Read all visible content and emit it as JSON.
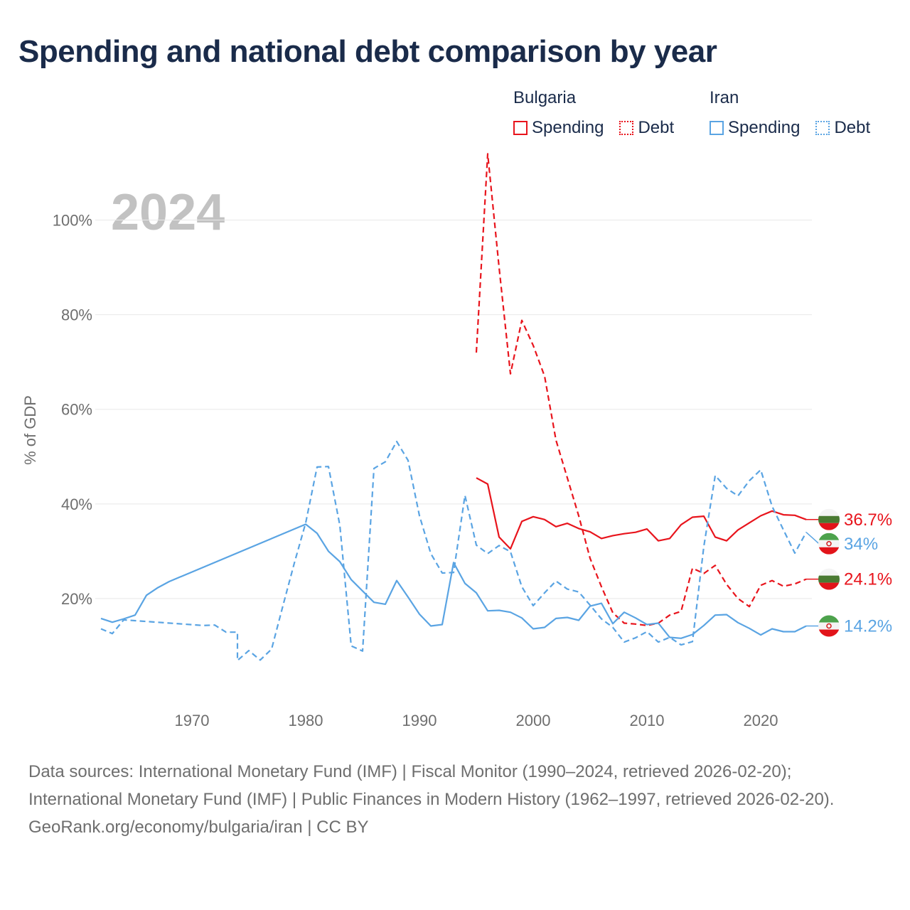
{
  "title": "Spending and national debt comparison by year",
  "legend": {
    "groups": [
      {
        "country": "Bulgaria",
        "color": "#e8141c",
        "items": [
          {
            "label": "Spending",
            "style": "solid"
          },
          {
            "label": "Debt",
            "style": "dotted"
          }
        ]
      },
      {
        "country": "Iran",
        "color": "#5aa4e3",
        "items": [
          {
            "label": "Spending",
            "style": "solid"
          },
          {
            "label": "Debt",
            "style": "dotted"
          }
        ]
      }
    ]
  },
  "footer": {
    "sources": "Data sources: International Monetary Fund (IMF) | Fiscal Monitor (1990–2024, retrieved 2026-02-20); International Monetary Fund (IMF) | Public Finances in Modern History (1962–1997, retrieved 2026-02-20).",
    "credit": "GeoRank.org/economy/bulgaria/iran | CC BY"
  },
  "chart_data": {
    "type": "line",
    "year_label": "2024",
    "ylabel": "% of GDP",
    "xlim": [
      1961.5,
      2024.5
    ],
    "ylim": [
      0,
      110
    ],
    "x_ticks": [
      1970,
      1980,
      1990,
      2000,
      2010,
      2020
    ],
    "y_ticks": [
      20,
      40,
      60,
      80,
      100
    ],
    "y_tick_labels": [
      "20%",
      "40%",
      "60%",
      "80%",
      "100%"
    ],
    "grid": true,
    "series": [
      {
        "name": "Bulgaria Spending",
        "country": "Bulgaria",
        "metric": "Spending",
        "color": "#e8141c",
        "dash": "solid",
        "end_label": "36.7%",
        "points": [
          [
            1995,
            45.5
          ],
          [
            1996,
            44.2
          ],
          [
            1997,
            33.0
          ],
          [
            1998,
            30.5
          ],
          [
            1999,
            36.3
          ],
          [
            2000,
            37.3
          ],
          [
            2001,
            36.7
          ],
          [
            2002,
            35.2
          ],
          [
            2003,
            35.9
          ],
          [
            2004,
            34.8
          ],
          [
            2005,
            34.1
          ],
          [
            2006,
            32.7
          ],
          [
            2007,
            33.3
          ],
          [
            2008,
            33.7
          ],
          [
            2009,
            34.0
          ],
          [
            2010,
            34.7
          ],
          [
            2011,
            32.2
          ],
          [
            2012,
            32.7
          ],
          [
            2013,
            35.6
          ],
          [
            2014,
            37.2
          ],
          [
            2015,
            37.4
          ],
          [
            2016,
            33.0
          ],
          [
            2017,
            32.2
          ],
          [
            2018,
            34.5
          ],
          [
            2019,
            36.0
          ],
          [
            2020,
            37.5
          ],
          [
            2021,
            38.5
          ],
          [
            2022,
            37.7
          ],
          [
            2023,
            37.6
          ],
          [
            2024,
            36.7
          ]
        ]
      },
      {
        "name": "Bulgaria Debt",
        "country": "Bulgaria",
        "metric": "Debt",
        "color": "#e8141c",
        "dash": "dashed",
        "end_label": "24.1%",
        "points": [
          [
            1995,
            72.0
          ],
          [
            1996,
            114.0
          ],
          [
            1997,
            90.0
          ],
          [
            1998,
            67.5
          ],
          [
            1999,
            78.8
          ],
          [
            2000,
            73.5
          ],
          [
            2001,
            67.0
          ],
          [
            2002,
            53.5
          ],
          [
            2003,
            45.5
          ],
          [
            2004,
            37.5
          ],
          [
            2005,
            28.5
          ],
          [
            2006,
            22.5
          ],
          [
            2007,
            17.0
          ],
          [
            2008,
            14.8
          ],
          [
            2009,
            14.6
          ],
          [
            2010,
            14.3
          ],
          [
            2011,
            14.8
          ],
          [
            2012,
            16.5
          ],
          [
            2013,
            17.3
          ],
          [
            2014,
            26.4
          ],
          [
            2015,
            25.3
          ],
          [
            2016,
            27.0
          ],
          [
            2017,
            23.0
          ],
          [
            2018,
            20.0
          ],
          [
            2019,
            18.3
          ],
          [
            2020,
            22.8
          ],
          [
            2021,
            23.8
          ],
          [
            2022,
            22.6
          ],
          [
            2023,
            23.1
          ],
          [
            2024,
            24.1
          ]
        ]
      },
      {
        "name": "Iran Spending",
        "country": "Iran",
        "metric": "Spending",
        "color": "#5aa4e3",
        "dash": "solid",
        "end_label": "14.2%",
        "points": [
          [
            1962,
            15.8
          ],
          [
            1963,
            15.0
          ],
          [
            1964,
            15.7
          ],
          [
            1965,
            16.5
          ],
          [
            1966,
            20.7
          ],
          [
            1967,
            22.3
          ],
          [
            1968,
            23.6
          ],
          [
            1980,
            35.7
          ],
          [
            1981,
            33.8
          ],
          [
            1982,
            30.0
          ],
          [
            1983,
            27.8
          ],
          [
            1984,
            24.0
          ],
          [
            1985,
            21.6
          ],
          [
            1986,
            19.2
          ],
          [
            1987,
            18.8
          ],
          [
            1988,
            23.8
          ],
          [
            1989,
            20.3
          ],
          [
            1990,
            16.7
          ],
          [
            1991,
            14.2
          ],
          [
            1992,
            14.5
          ],
          [
            1993,
            27.6
          ],
          [
            1994,
            23.2
          ],
          [
            1995,
            21.2
          ],
          [
            1996,
            17.4
          ],
          [
            1997,
            17.5
          ],
          [
            1998,
            17.1
          ],
          [
            1999,
            15.9
          ],
          [
            2000,
            13.6
          ],
          [
            2001,
            13.9
          ],
          [
            2002,
            15.8
          ],
          [
            2003,
            16.0
          ],
          [
            2004,
            15.4
          ],
          [
            2005,
            18.4
          ],
          [
            2006,
            19.0
          ],
          [
            2007,
            14.7
          ],
          [
            2008,
            17.1
          ],
          [
            2009,
            15.9
          ],
          [
            2010,
            14.5
          ],
          [
            2011,
            14.8
          ],
          [
            2012,
            11.8
          ],
          [
            2013,
            11.6
          ],
          [
            2014,
            12.4
          ],
          [
            2015,
            14.3
          ],
          [
            2016,
            16.5
          ],
          [
            2017,
            16.6
          ],
          [
            2018,
            14.9
          ],
          [
            2019,
            13.7
          ],
          [
            2020,
            12.3
          ],
          [
            2021,
            13.6
          ],
          [
            2022,
            13.0
          ],
          [
            2023,
            13.0
          ],
          [
            2024,
            14.2
          ]
        ]
      },
      {
        "name": "Iran Debt",
        "country": "Iran",
        "metric": "Debt",
        "color": "#5aa4e3",
        "dash": "dashed",
        "end_label": "34%",
        "points": [
          [
            1962,
            13.6
          ],
          [
            1963,
            12.6
          ],
          [
            1964,
            15.5
          ],
          [
            1971,
            14.3
          ],
          [
            1972,
            14.4
          ],
          [
            1973,
            12.9
          ],
          [
            1974,
            12.9
          ],
          [
            1974,
            6.9
          ],
          [
            1975,
            9.0
          ],
          [
            1976,
            7.0
          ],
          [
            1977,
            9.3
          ],
          [
            1978,
            18.5
          ],
          [
            1979,
            27.5
          ],
          [
            1980,
            36.0
          ],
          [
            1981,
            47.8
          ],
          [
            1982,
            47.9
          ],
          [
            1983,
            35.5
          ],
          [
            1984,
            10.0
          ],
          [
            1985,
            8.9
          ],
          [
            1986,
            47.5
          ],
          [
            1987,
            48.9
          ],
          [
            1988,
            53.2
          ],
          [
            1989,
            49.2
          ],
          [
            1990,
            37.5
          ],
          [
            1991,
            29.5
          ],
          [
            1992,
            25.4
          ],
          [
            1993,
            25.5
          ],
          [
            1994,
            41.8
          ],
          [
            1995,
            31.3
          ],
          [
            1996,
            29.5
          ],
          [
            1997,
            31.2
          ],
          [
            1998,
            29.9
          ],
          [
            1999,
            22.5
          ],
          [
            2000,
            18.5
          ],
          [
            2001,
            21.2
          ],
          [
            2002,
            23.7
          ],
          [
            2003,
            22.0
          ],
          [
            2004,
            21.4
          ],
          [
            2005,
            18.6
          ],
          [
            2006,
            15.7
          ],
          [
            2007,
            13.9
          ],
          [
            2008,
            10.8
          ],
          [
            2009,
            11.7
          ],
          [
            2010,
            13.0
          ],
          [
            2011,
            10.8
          ],
          [
            2012,
            11.8
          ],
          [
            2013,
            10.2
          ],
          [
            2014,
            10.9
          ],
          [
            2015,
            31.0
          ],
          [
            2016,
            46.0
          ],
          [
            2017,
            43.3
          ],
          [
            2018,
            41.7
          ],
          [
            2019,
            44.9
          ],
          [
            2020,
            47.2
          ],
          [
            2021,
            39.5
          ],
          [
            2022,
            34.5
          ],
          [
            2023,
            29.6
          ],
          [
            2024,
            34.0
          ]
        ]
      }
    ]
  }
}
